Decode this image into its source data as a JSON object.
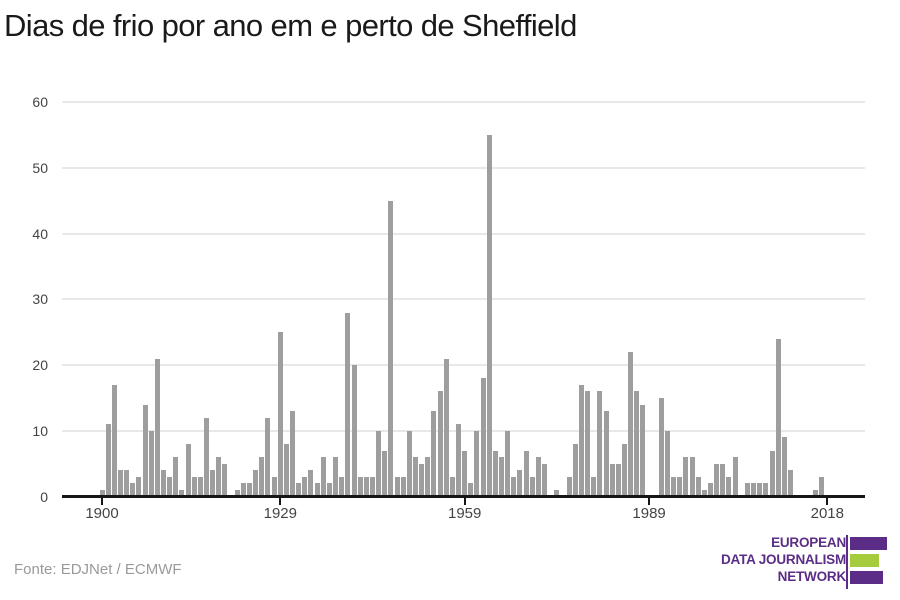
{
  "title": "Dias de frio por ano em e perto de Sheffield",
  "source_note": "Fonte: EDJNet / ECMWF",
  "logo": {
    "line1": "EUROPEAN",
    "line2": "DATA JOURNALISM",
    "line3": "NETWORK",
    "purple": "#5b2d86",
    "green": "#a4cc3c"
  },
  "colors": {
    "bar": "#9e9e9e",
    "gridline": "#e8e8e8",
    "axis": "#161616",
    "title_text": "#1a1a1a",
    "tick_text": "#444444",
    "source_text": "#9a9a9a"
  },
  "chart_data": {
    "type": "bar",
    "title": "Dias de frio por ano em e perto de Sheffield",
    "xlabel": "",
    "ylabel": "",
    "x_start_year": 1900,
    "x_end_year": 2018,
    "x_tick_years": [
      1900,
      1929,
      1959,
      1989,
      2018
    ],
    "y_ticks": [
      0,
      10,
      20,
      30,
      40,
      50,
      60
    ],
    "ylim": [
      0,
      60
    ],
    "grid": true,
    "legend": false,
    "series": [
      {
        "name": "Dias de frio",
        "years": [
          1900,
          1901,
          1902,
          1903,
          1904,
          1905,
          1906,
          1907,
          1908,
          1909,
          1910,
          1911,
          1912,
          1913,
          1914,
          1915,
          1916,
          1917,
          1918,
          1919,
          1920,
          1921,
          1922,
          1923,
          1924,
          1925,
          1926,
          1927,
          1928,
          1929,
          1930,
          1931,
          1932,
          1933,
          1934,
          1935,
          1936,
          1937,
          1938,
          1939,
          1940,
          1941,
          1942,
          1943,
          1944,
          1945,
          1946,
          1947,
          1948,
          1949,
          1950,
          1951,
          1952,
          1953,
          1954,
          1955,
          1956,
          1957,
          1958,
          1959,
          1960,
          1961,
          1962,
          1963,
          1964,
          1965,
          1966,
          1967,
          1968,
          1969,
          1970,
          1971,
          1972,
          1973,
          1974,
          1975,
          1976,
          1977,
          1978,
          1979,
          1980,
          1981,
          1982,
          1983,
          1984,
          1985,
          1986,
          1987,
          1988,
          1989,
          1990,
          1991,
          1992,
          1993,
          1994,
          1995,
          1996,
          1997,
          1998,
          1999,
          2000,
          2001,
          2002,
          2003,
          2004,
          2005,
          2006,
          2007,
          2008,
          2009,
          2010,
          2011,
          2012,
          2013,
          2014,
          2015,
          2016,
          2017,
          2018
        ],
        "values": [
          1,
          11,
          17,
          4,
          4,
          2,
          3,
          14,
          10,
          21,
          4,
          3,
          6,
          1,
          8,
          3,
          3,
          12,
          4,
          6,
          5,
          0,
          1,
          2,
          2,
          4,
          6,
          12,
          3,
          25,
          8,
          13,
          2,
          3,
          4,
          2,
          6,
          2,
          6,
          3,
          28,
          20,
          3,
          3,
          3,
          10,
          7,
          45,
          3,
          3,
          10,
          6,
          5,
          6,
          13,
          16,
          21,
          3,
          11,
          7,
          2,
          10,
          18,
          55,
          7,
          6,
          10,
          3,
          4,
          7,
          3,
          6,
          5,
          0,
          1,
          0,
          3,
          8,
          17,
          16,
          3,
          16,
          13,
          5,
          5,
          8,
          22,
          16,
          14,
          0,
          0,
          15,
          10,
          3,
          3,
          6,
          6,
          3,
          1,
          2,
          5,
          5,
          3,
          6,
          0,
          2,
          2,
          2,
          2,
          7,
          24,
          9,
          4,
          0,
          0,
          0,
          1,
          3,
          0
        ]
      }
    ]
  }
}
